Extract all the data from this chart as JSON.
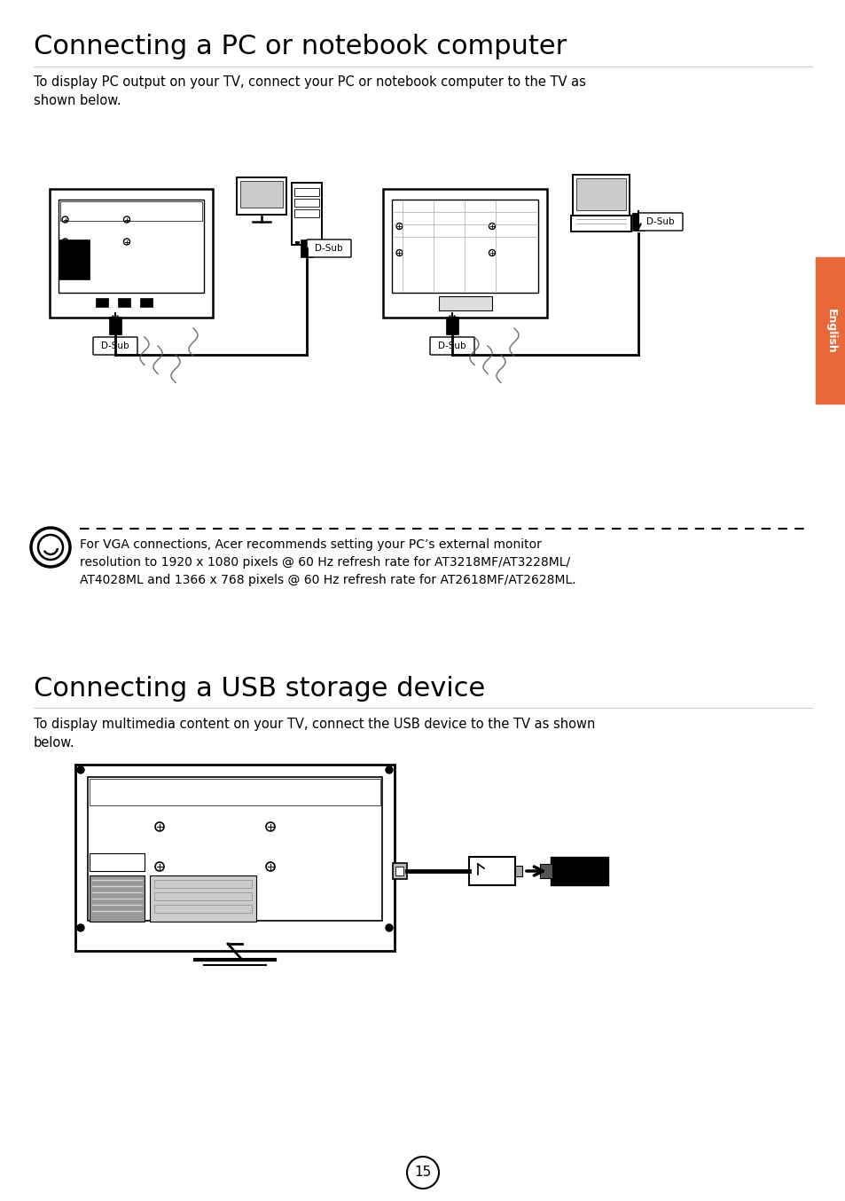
{
  "title1": "Connecting a PC or notebook computer",
  "body1": "To display PC output on your TV, connect your PC or notebook computer to the TV as\nshown below.",
  "note_text": "For VGA connections, Acer recommends setting your PC’s external monitor\nresolution to 1920 x 1080 pixels @ 60 Hz refresh rate for AT3218MF/AT3228ML/\nAT4028ML and 1366 x 768 pixels @ 60 Hz refresh rate for AT2618MF/AT2628ML.",
  "title2": "Connecting a USB storage device",
  "body2": "To display multimedia content on your TV, connect the USB device to the TV as shown\nbelow.",
  "page_number": "15",
  "sidebar_text": "English",
  "bg_color": "#ffffff",
  "text_color": "#000000",
  "sidebar_color": "#e8683a"
}
